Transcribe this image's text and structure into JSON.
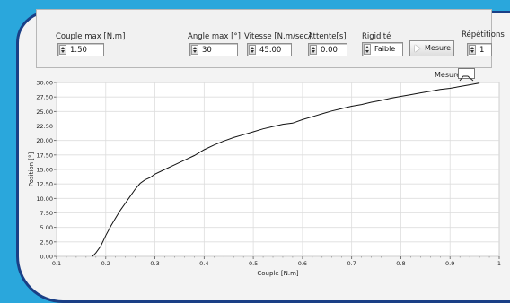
{
  "controls": {
    "couple_max": {
      "label": "Couple max [N.m]",
      "value": "1.50"
    },
    "angle_max": {
      "label": "Angle max [°]",
      "value": "30"
    },
    "vitesse": {
      "label": "Vitesse [N.m/sec]",
      "value": "45.00"
    },
    "attente": {
      "label": "Attente[s]",
      "value": "0.00"
    },
    "rigidite": {
      "label": "Rigidité",
      "value": "Faible"
    },
    "mesure_button": "Mesure",
    "repetitions": {
      "label": "Répétitions",
      "value": "1"
    }
  },
  "colors": {
    "background": "#2aa7dc",
    "panel_border": "#1a3f86",
    "curve": "#111111"
  },
  "chart_data": {
    "type": "line",
    "xlabel": "Couple [N.m]",
    "ylabel": "Position [°]",
    "xlim": [
      0.1,
      1
    ],
    "ylim": [
      0,
      30
    ],
    "xticks": [
      "0.1",
      "0.2",
      "0.3",
      "0.4",
      "0.5",
      "0.6",
      "0.7",
      "0.8",
      "0.9",
      "1"
    ],
    "yticks": [
      "0.00",
      "2.50",
      "5.00",
      "7.50",
      "10.00",
      "12.50",
      "15.00",
      "17.50",
      "20.00",
      "22.50",
      "25.00",
      "27.50",
      "30.00"
    ],
    "grid": true,
    "legend_position": "top-right",
    "series": [
      {
        "name": "Mesure",
        "x": [
          0.173,
          0.18,
          0.19,
          0.2,
          0.21,
          0.22,
          0.23,
          0.24,
          0.25,
          0.26,
          0.27,
          0.28,
          0.29,
          0.3,
          0.32,
          0.34,
          0.36,
          0.38,
          0.4,
          0.42,
          0.44,
          0.46,
          0.48,
          0.5,
          0.52,
          0.54,
          0.56,
          0.58,
          0.6,
          0.62,
          0.64,
          0.66,
          0.68,
          0.7,
          0.72,
          0.74,
          0.76,
          0.78,
          0.8,
          0.82,
          0.84,
          0.86,
          0.88,
          0.9,
          0.92,
          0.94,
          0.96
        ],
        "y": [
          0.0,
          0.6,
          1.8,
          3.6,
          5.2,
          6.6,
          8.0,
          9.2,
          10.4,
          11.6,
          12.6,
          13.2,
          13.6,
          14.2,
          15.0,
          15.8,
          16.6,
          17.4,
          18.4,
          19.2,
          19.9,
          20.5,
          21.0,
          21.5,
          22.0,
          22.4,
          22.8,
          23.0,
          23.6,
          24.1,
          24.6,
          25.1,
          25.5,
          25.9,
          26.2,
          26.6,
          26.9,
          27.3,
          27.6,
          27.9,
          28.2,
          28.5,
          28.8,
          29.0,
          29.3,
          29.6,
          29.9
        ]
      }
    ]
  }
}
